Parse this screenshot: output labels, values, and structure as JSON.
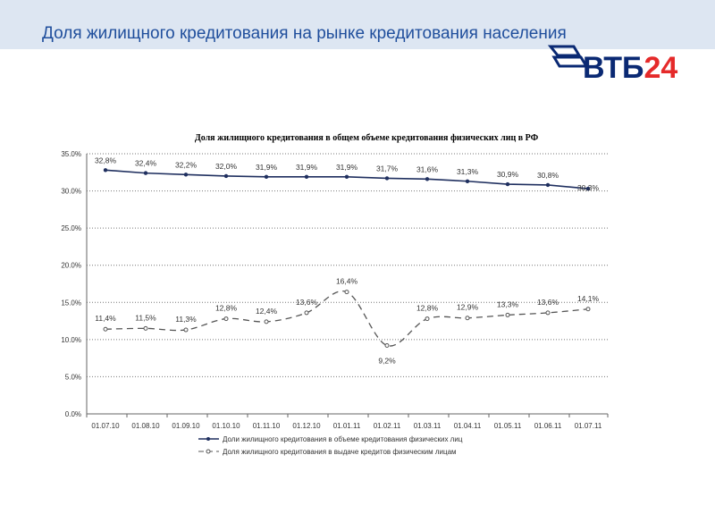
{
  "slide_title": "Доля жилищного кредитования на рынке кредитования населения",
  "logo": {
    "text_a": "ВТБ",
    "text_b": "24",
    "color_a": "#0a2973",
    "color_b": "#e52a2a"
  },
  "chart_data": {
    "type": "line",
    "title": "Доля жилищного кредитования в общем объеме кредитования физических лиц в РФ",
    "categories": [
      "01.07.10",
      "01.08.10",
      "01.09.10",
      "01.10.10",
      "01.11.10",
      "01.12.10",
      "01.01.11",
      "01.02.11",
      "01.03.11",
      "01.04.11",
      "01.05.11",
      "01.06.11",
      "01.07.11"
    ],
    "ylim": [
      0,
      35
    ],
    "yticks": [
      "0.0%",
      "5.0%",
      "10.0%",
      "15.0%",
      "20.0%",
      "25.0%",
      "30.0%",
      "35.0%"
    ],
    "legend_position": "bottom",
    "series": [
      {
        "name": "Доли жилищного кредитования в объеме кредитования физических лиц",
        "values": [
          32.8,
          32.4,
          32.2,
          32.0,
          31.9,
          31.9,
          31.9,
          31.7,
          31.6,
          31.3,
          30.9,
          30.8,
          30.3
        ],
        "labels": [
          "32,8%",
          "32,4%",
          "32,2%",
          "32,0%",
          "31,9%",
          "31,9%",
          "31,9%",
          "31,7%",
          "31,6%",
          "31,3%",
          "30,9%",
          "30,8%",
          "30,3%"
        ],
        "color": "#1f2f5f"
      },
      {
        "name": "Доля жилищного кредитования в выдаче кредитов физическим лицам",
        "values": [
          11.4,
          11.5,
          11.3,
          12.8,
          12.4,
          13.6,
          16.4,
          9.2,
          12.8,
          12.9,
          13.3,
          13.6,
          14.1
        ],
        "labels": [
          "11,4%",
          "11,5%",
          "11,3%",
          "12,8%",
          "12,4%",
          "13,6%",
          "16,4%",
          "9,2%",
          "12,8%",
          "12,9%",
          "13,3%",
          "13,6%",
          "14,1%"
        ],
        "color": "#555555"
      }
    ]
  }
}
